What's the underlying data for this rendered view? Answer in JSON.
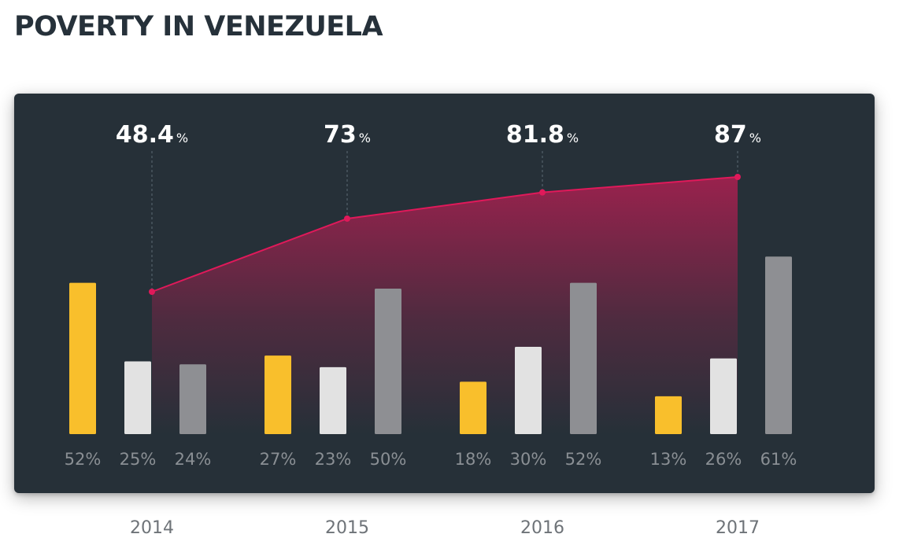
{
  "title": "POVERTY IN VENEZUELA",
  "chart_data": {
    "type": "bar",
    "title": "POVERTY IN VENEZUELA",
    "categories": [
      "2014",
      "2015",
      "2016",
      "2017"
    ],
    "series": [
      {
        "name": "yellow",
        "color": "#f9bf2c",
        "values": [
          52,
          27,
          18,
          13
        ]
      },
      {
        "name": "light-gray",
        "color": "#e2e2e2",
        "values": [
          25,
          23,
          30,
          26
        ]
      },
      {
        "name": "dark-gray",
        "color": "#8e8f93",
        "values": [
          24,
          50,
          52,
          61
        ]
      }
    ],
    "bar_labels": [
      [
        "52%",
        "25%",
        "24%"
      ],
      [
        "27%",
        "23%",
        "50%"
      ],
      [
        "18%",
        "30%",
        "52%"
      ],
      [
        "13%",
        "26%",
        "61%"
      ]
    ],
    "line": {
      "name": "poverty",
      "color": "#e0195a",
      "values": [
        48.4,
        73,
        81.8,
        87
      ],
      "labels": [
        "48.4",
        "73",
        "81.8",
        "87"
      ],
      "unit": "%"
    },
    "xlabel": "",
    "ylabel": "",
    "ylim": [
      0,
      100
    ]
  }
}
